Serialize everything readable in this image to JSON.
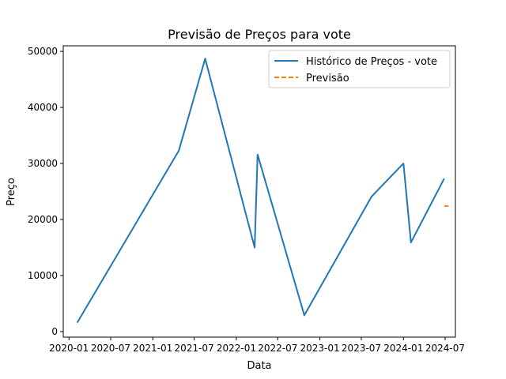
{
  "chart_data": {
    "type": "line",
    "title": "Previsão de Preços para vote",
    "xlabel": "Data",
    "ylabel": "Preço",
    "xlim": [
      "2019-12-07",
      "2024-08-15"
    ],
    "ylim": [
      -1000,
      51000
    ],
    "x_ticks": [
      "2020-01",
      "2020-07",
      "2021-01",
      "2021-07",
      "2022-01",
      "2022-07",
      "2023-01",
      "2023-07",
      "2024-01",
      "2024-07"
    ],
    "y_ticks": [
      0,
      10000,
      20000,
      30000,
      40000,
      50000
    ],
    "grid": false,
    "legend_position": "top-right",
    "series": [
      {
        "name": "Histórico de Preços - vote",
        "color": "#1f77b4",
        "style": "solid",
        "points": [
          {
            "x": "2020-02-06",
            "y": 1600
          },
          {
            "x": "2021-04-25",
            "y": 32300
          },
          {
            "x": "2021-08-18",
            "y": 48700
          },
          {
            "x": "2022-03-22",
            "y": 15000
          },
          {
            "x": "2022-04-04",
            "y": 31600
          },
          {
            "x": "2022-10-25",
            "y": 2900
          },
          {
            "x": "2023-08-15",
            "y": 24100
          },
          {
            "x": "2024-01-01",
            "y": 30000
          },
          {
            "x": "2024-02-03",
            "y": 15900
          },
          {
            "x": "2024-06-27",
            "y": 27300
          }
        ]
      },
      {
        "name": "Previsão",
        "color": "#ff7f0e",
        "style": "dashed",
        "points": [
          {
            "x": "2024-06-28",
            "y": 22400
          },
          {
            "x": "2024-07-16",
            "y": 22400
          }
        ]
      }
    ]
  }
}
